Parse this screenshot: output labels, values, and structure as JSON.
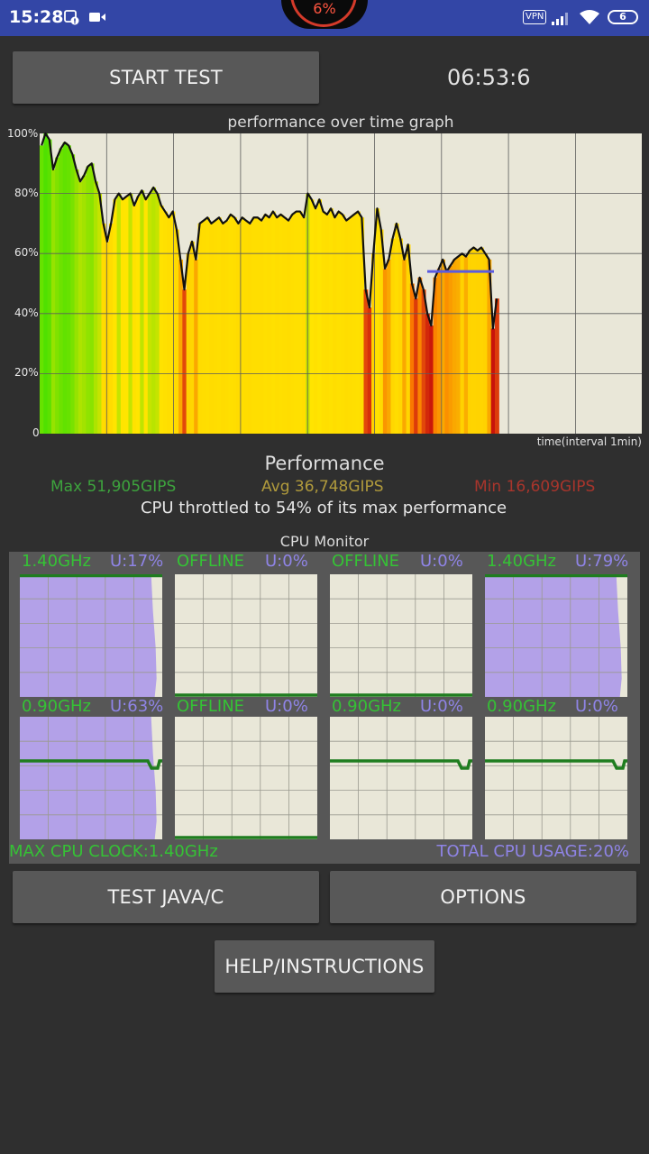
{
  "status_bar": {
    "time": "15:28",
    "battery_percent_overlay": "6%",
    "vpn_label": "VPN",
    "battery_level": "6"
  },
  "toolbar": {
    "start_test_label": "START TEST",
    "timer": "06:53:6"
  },
  "perf_graph": {
    "title": "performance over time graph",
    "y_tick_labels": [
      "100%",
      "80%",
      "60%",
      "40%",
      "20%",
      "0"
    ],
    "x_label": "time(interval 1min)"
  },
  "chart_data": {
    "type": "area",
    "title": "performance over time graph",
    "xlabel": "time(interval 1min)",
    "ylabel": "",
    "ylim": [
      0,
      100
    ],
    "y_unit": "%",
    "x_interval_minutes": 1,
    "grid": true,
    "values": [
      96,
      100,
      98,
      88,
      92,
      95,
      97,
      96,
      93,
      88,
      84,
      86,
      89,
      90,
      84,
      80,
      70,
      64,
      70,
      78,
      80,
      78,
      79,
      80,
      76,
      79,
      81,
      78,
      80,
      82,
      80,
      76,
      74,
      72,
      74,
      68,
      58,
      48,
      60,
      64,
      58,
      70,
      71,
      72,
      70,
      71,
      72,
      70,
      71,
      73,
      72,
      70,
      72,
      71,
      70,
      72,
      72,
      71,
      73,
      72,
      74,
      72,
      73,
      72,
      71,
      73,
      74,
      74,
      72,
      80,
      78,
      75,
      78,
      74,
      73,
      75,
      72,
      74,
      73,
      71,
      72,
      73,
      74,
      72,
      48,
      42,
      60,
      75,
      68,
      55,
      58,
      65,
      70,
      65,
      58,
      63,
      50,
      45,
      52,
      48,
      40,
      36,
      52,
      55,
      58,
      54,
      56,
      58,
      59,
      60,
      59,
      61,
      62,
      61,
      62,
      60,
      58,
      35,
      45
    ],
    "max_marker_percent": 54
  },
  "performance": {
    "title": "Performance",
    "max": "Max 51,905GIPS",
    "avg": "Avg 36,748GIPS",
    "min": "Min 16,609GIPS",
    "throttle_text": "CPU throttled to 54% of its max performance"
  },
  "cpu_monitor": {
    "title": "CPU Monitor",
    "cores": [
      {
        "freq": "1.40GHz",
        "usage": "U:17%",
        "usage_value": 17,
        "online": true,
        "clock_level": 1.0,
        "load_level": 0.96
      },
      {
        "freq": "OFFLINE",
        "usage": "U:0%",
        "usage_value": 0,
        "online": false,
        "clock_level": 0.0,
        "load_level": 0.0
      },
      {
        "freq": "OFFLINE",
        "usage": "U:0%",
        "usage_value": 0,
        "online": false,
        "clock_level": 0.0,
        "load_level": 0.0
      },
      {
        "freq": "1.40GHz",
        "usage": "U:79%",
        "usage_value": 79,
        "online": true,
        "clock_level": 1.0,
        "load_level": 0.96
      },
      {
        "freq": "0.90GHz",
        "usage": "U:63%",
        "usage_value": 63,
        "online": true,
        "clock_level": 0.64,
        "load_level": 0.96
      },
      {
        "freq": "OFFLINE",
        "usage": "U:0%",
        "usage_value": 0,
        "online": false,
        "clock_level": 0.0,
        "load_level": 0.0
      },
      {
        "freq": "0.90GHz",
        "usage": "U:0%",
        "usage_value": 0,
        "online": true,
        "clock_level": 0.64,
        "load_level": 0.0
      },
      {
        "freq": "0.90GHz",
        "usage": "U:0%",
        "usage_value": 0,
        "online": true,
        "clock_level": 0.64,
        "load_level": 0.0
      }
    ],
    "max_cpu_clock": "MAX CPU CLOCK:1.40GHz",
    "total_cpu_usage": "TOTAL CPU USAGE:20%"
  },
  "buttons": {
    "test_java_c": "TEST JAVA/C",
    "options": "OPTIONS",
    "help": "HELP/INSTRUCTIONS"
  },
  "colors": {
    "status_bar": "#3346a6",
    "background": "#2f2f2f",
    "button": "#585858",
    "graph_bg": "#e9e7d8",
    "max_green": "#3da33d",
    "avg_gold": "#b09a3c",
    "min_red": "#a8352c",
    "freq_green": "#35c235",
    "usage_purple": "#8f84e6",
    "load_fill": "#b3a1e8",
    "clock_line": "#1f7d1f"
  }
}
